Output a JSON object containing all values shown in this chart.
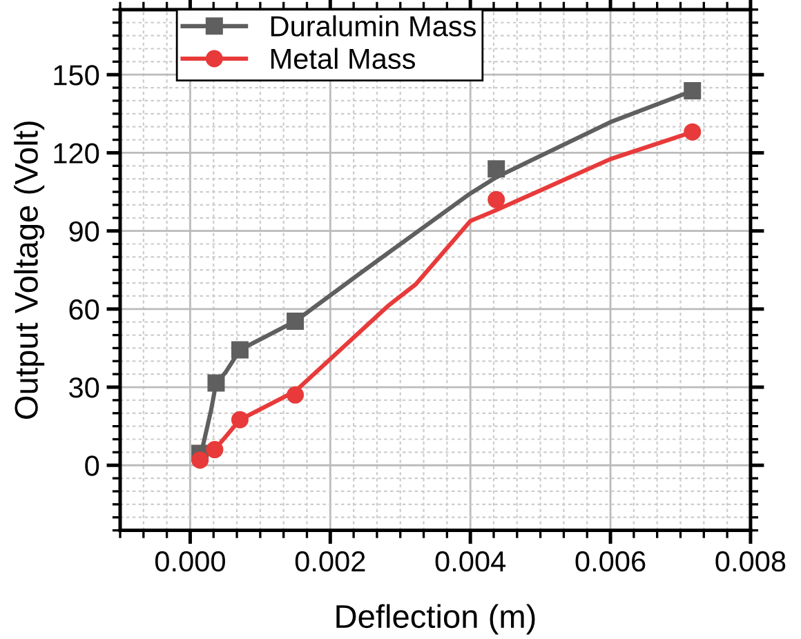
{
  "chart_data": {
    "type": "scatter",
    "xlabel": "Deflection (m)",
    "ylabel": "Output Voltage (Volt)",
    "xlim": [
      -0.001,
      0.008
    ],
    "xticks": [
      {
        "value": 0.0,
        "label": "0.000"
      },
      {
        "value": 0.002,
        "label": "0.002"
      },
      {
        "value": 0.004,
        "label": "0.004"
      },
      {
        "value": 0.006,
        "label": "0.006"
      },
      {
        "value": 0.008,
        "label": "0.008"
      }
    ],
    "ylim": [
      -25,
      175
    ],
    "yticks": [
      0,
      30,
      60,
      90,
      120,
      150
    ],
    "grid": true,
    "legend": "top left",
    "series": [
      {
        "name": "Duralumin Mass",
        "color": "#5f5f5f",
        "marker": "square",
        "x": [
          0.00014,
          0.00037,
          0.00071,
          0.0015,
          0.00437,
          0.00717
        ],
        "values": [
          4.6,
          31.6,
          44.3,
          55.3,
          113.8,
          143.8
        ]
      },
      {
        "name": "Metal Mass",
        "color": "#e83a3a",
        "marker": "circle",
        "x": [
          0.00014,
          0.00035,
          0.00071,
          0.0015,
          0.00437,
          0.00717
        ],
        "values": [
          2,
          6,
          17.5,
          27,
          102,
          128
        ]
      },
      {
        "type": "line",
        "color": "#5f5f5f",
        "line_style": "solid",
        "x": [
          0.00015,
          0.0003,
          0.00037,
          0.0005,
          0.00071,
          0.00112,
          0.0015,
          0.00237,
          0.00282,
          0.004,
          0.00437,
          0.006,
          0.00717
        ],
        "values": [
          3.7,
          21.4,
          31.6,
          35.5,
          44.3,
          50,
          55.3,
          72.6,
          81.4,
          104.4,
          110.6,
          131.8,
          143.8
        ]
      },
      {
        "type": "line",
        "color": "#e83a3a",
        "line_style": "solid",
        "x": [
          0.00014,
          0.00035,
          0.00071,
          0.0015,
          0.00282,
          0.00322,
          0.004,
          0.00437,
          0.006,
          0.00717
        ],
        "values": [
          2,
          6,
          17.5,
          28.4,
          61.1,
          69.5,
          93.8,
          98,
          117.6,
          128
        ]
      }
    ]
  }
}
